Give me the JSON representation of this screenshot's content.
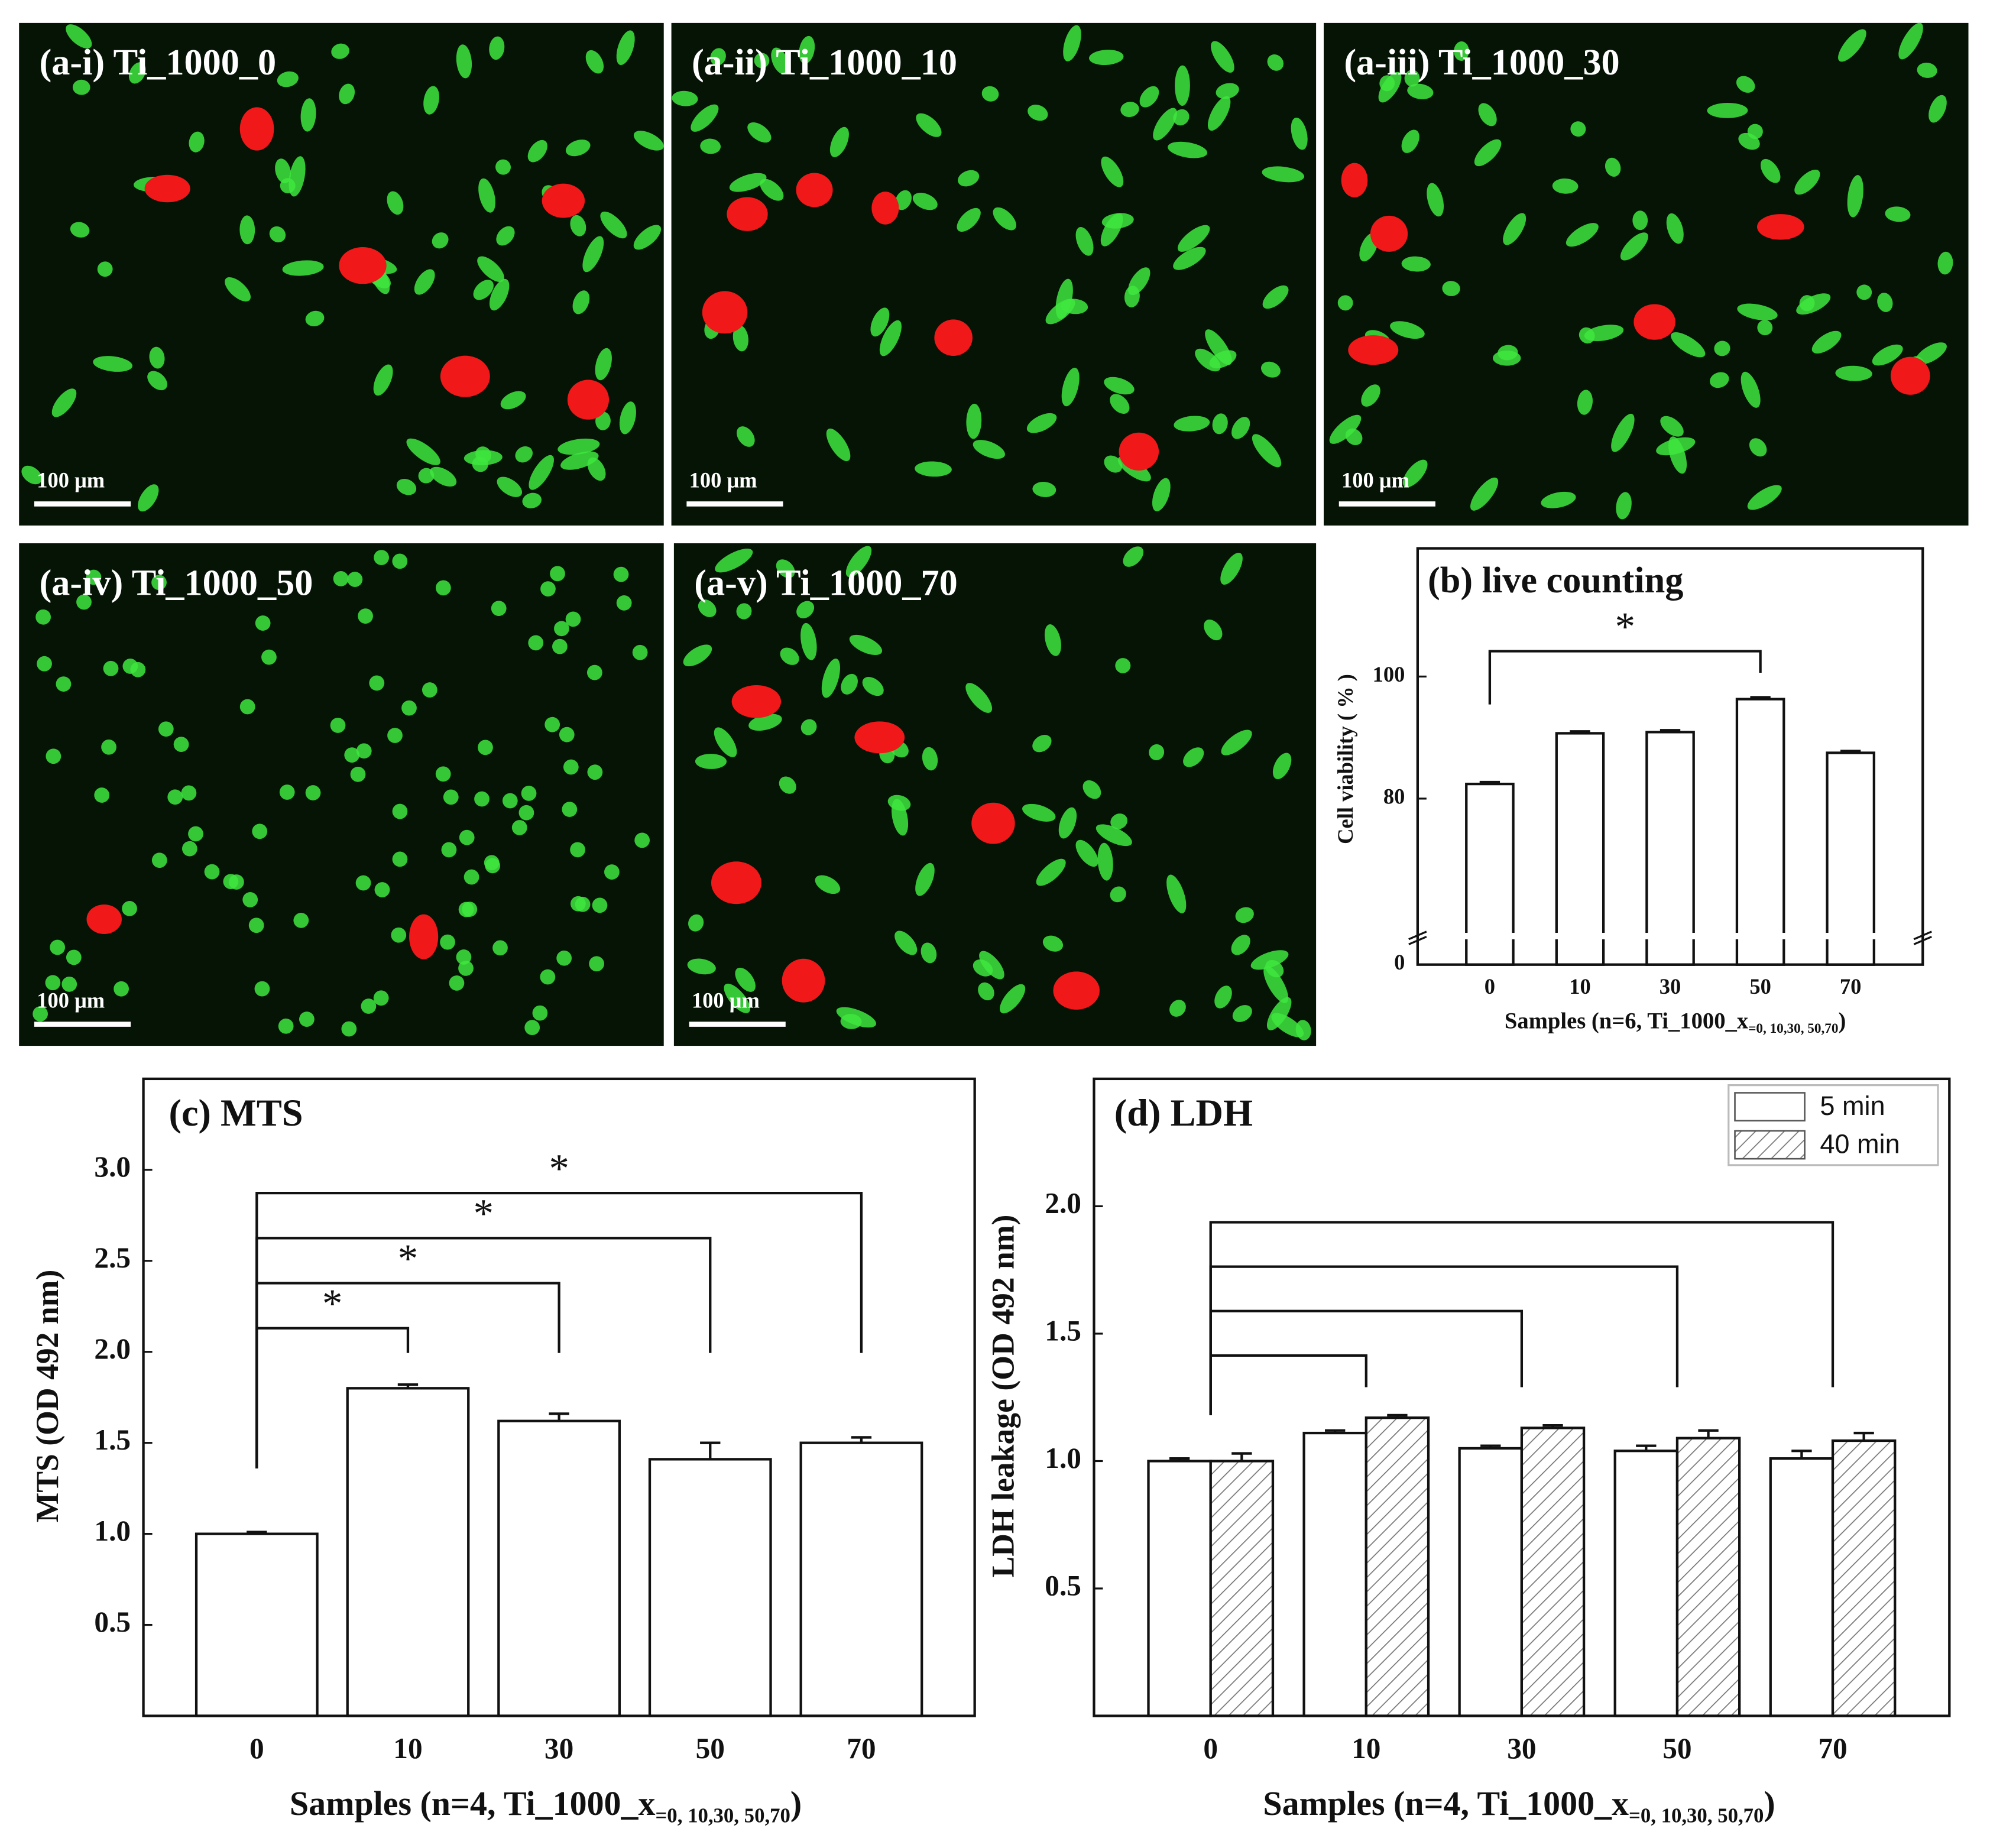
{
  "panels": [
    {
      "label": "(a-i) Ti_1000_0",
      "scale": "100 μm"
    },
    {
      "label": "(a-ii) Ti_1000_10",
      "scale": "100 μm"
    },
    {
      "label": "(a-iii) Ti_1000_30",
      "scale": "100 μm"
    },
    {
      "label": "(a-iv) Ti_1000_50",
      "scale": "100 μm"
    },
    {
      "label": "(a-v) Ti_1000_70",
      "scale": "100 μm"
    }
  ],
  "chart_data": [
    {
      "type": "bar",
      "title": "(b) live counting",
      "ylabel": "Cell viability ( % )",
      "xlabel": [
        "Samples (n=6, Ti_1000_x",
        "=0, 10,30, 50,70",
        ")"
      ],
      "categories": [
        "0",
        "10",
        "30",
        "50",
        "70"
      ],
      "values": [
        82.4,
        90.7,
        90.9,
        96.3,
        87.5
      ],
      "errors": [
        0.3,
        0.3,
        0.3,
        0.3,
        0.3
      ],
      "color": "#ffffff",
      "ylim": [
        0,
        121
      ],
      "ybreak": [
        2,
        58
      ],
      "yticks": [
        0,
        80,
        100
      ],
      "brackets": [
        {
          "from": "0",
          "to": "50",
          "label": "*"
        }
      ]
    },
    {
      "type": "bar",
      "title": "(c) MTS",
      "ylabel": "MTS (OD 492 nm)",
      "xlabel": [
        "Samples (n=4, Ti_1000_x",
        "=0, 10,30, 50,70",
        ")"
      ],
      "categories": [
        "0",
        "10",
        "30",
        "50",
        "70"
      ],
      "values": [
        1.0,
        1.8,
        1.62,
        1.41,
        1.5
      ],
      "errors": [
        0.01,
        0.02,
        0.04,
        0.09,
        0.03
      ],
      "color": "#ffffff",
      "ylim": [
        0,
        3.5
      ],
      "yticks": [
        {
          "value": 0.5,
          "label": "0.5"
        },
        {
          "value": 1,
          "label": "1.0"
        },
        {
          "value": 1.5,
          "label": "1.5"
        },
        {
          "value": 2,
          "label": "2.0"
        },
        {
          "value": 2.5,
          "label": "2.5"
        },
        {
          "value": 3,
          "label": "3.0"
        }
      ],
      "brackets": [
        {
          "from": "0",
          "to": "10",
          "label": "*"
        },
        {
          "from": "0",
          "to": "30",
          "label": "*"
        },
        {
          "from": "0",
          "to": "50",
          "label": "*"
        },
        {
          "from": "0",
          "to": "70",
          "label": "*"
        }
      ]
    },
    {
      "type": "bar",
      "title": "(d) LDH",
      "ylabel": "LDH leakage (OD 492 nm)",
      "xlabel": [
        "Samples (n=4, Ti_1000_x",
        "=0, 10,30, 50,70",
        ")"
      ],
      "categories": [
        "0",
        "10",
        "30",
        "50",
        "70"
      ],
      "series": [
        {
          "name": "5 min",
          "color": "#ffffff",
          "pattern": "none",
          "values": [
            1.0,
            1.11,
            1.05,
            1.04,
            1.01
          ],
          "errors": [
            0.01,
            0.01,
            0.01,
            0.02,
            0.03
          ]
        },
        {
          "name": "40 min",
          "color": "#ffffff",
          "pattern": "hatch",
          "values": [
            1.0,
            1.17,
            1.13,
            1.09,
            1.08
          ],
          "errors": [
            0.03,
            0.01,
            0.01,
            0.03,
            0.03
          ]
        }
      ],
      "legend": "upper right",
      "ylim": [
        0,
        2.5
      ],
      "yticks": [
        {
          "value": 0.5,
          "label": "0.5"
        },
        {
          "value": 1,
          "label": "1.0"
        },
        {
          "value": 1.5,
          "label": "1.5"
        },
        {
          "value": 2,
          "label": "2.0"
        }
      ],
      "brackets": [
        {
          "from": "0",
          "to": "10"
        },
        {
          "from": "0",
          "to": "30"
        },
        {
          "from": "0",
          "to": "50"
        },
        {
          "from": "0",
          "to": "70"
        }
      ]
    }
  ]
}
